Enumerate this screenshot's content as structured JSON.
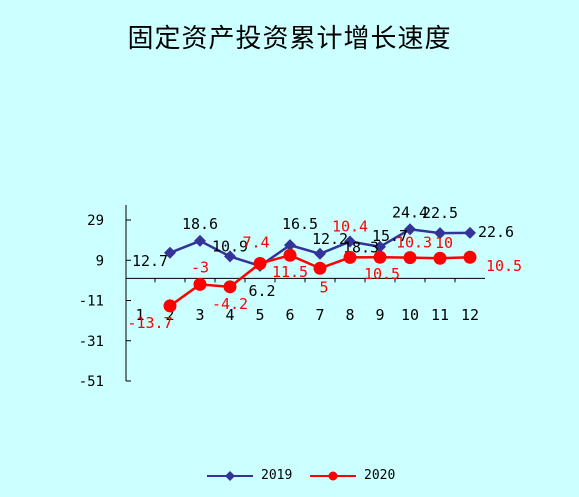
{
  "chart_data": {
    "type": "line",
    "title": "固定资产投资累计增长速度",
    "categories": [
      "1",
      "2",
      "3",
      "4",
      "5",
      "6",
      "7",
      "8",
      "9",
      "10",
      "11",
      "12"
    ],
    "ylim": [
      -51,
      29
    ],
    "yticks": [
      "29",
      "9",
      "-11",
      "-31",
      "-51"
    ],
    "grid": false,
    "legend_position": "bottom",
    "series": [
      {
        "name": "2019",
        "color": "#333399",
        "marker": "diamond",
        "values": [
          null,
          12.7,
          18.6,
          10.9,
          6.2,
          16.5,
          12.2,
          18.3,
          15.7,
          24.4,
          22.5,
          22.6
        ],
        "labels": [
          "",
          "12.7",
          "18.6",
          "10.9",
          "6.2",
          "16.5",
          "12.2",
          "18.3",
          "15.7",
          "24.4",
          "22.5",
          "22.6"
        ]
      },
      {
        "name": "2020",
        "color": "#ff0000",
        "marker": "circle",
        "values": [
          null,
          -13.7,
          -3,
          -4.2,
          7.4,
          11.5,
          5,
          10.4,
          10.5,
          10.3,
          10,
          10.5
        ],
        "labels": [
          "",
          "-13.7",
          "-3",
          "-4.2",
          "7.4",
          "11.5",
          "5",
          "10.4",
          "10.5",
          "10.3",
          "10",
          "10.5"
        ]
      }
    ]
  }
}
